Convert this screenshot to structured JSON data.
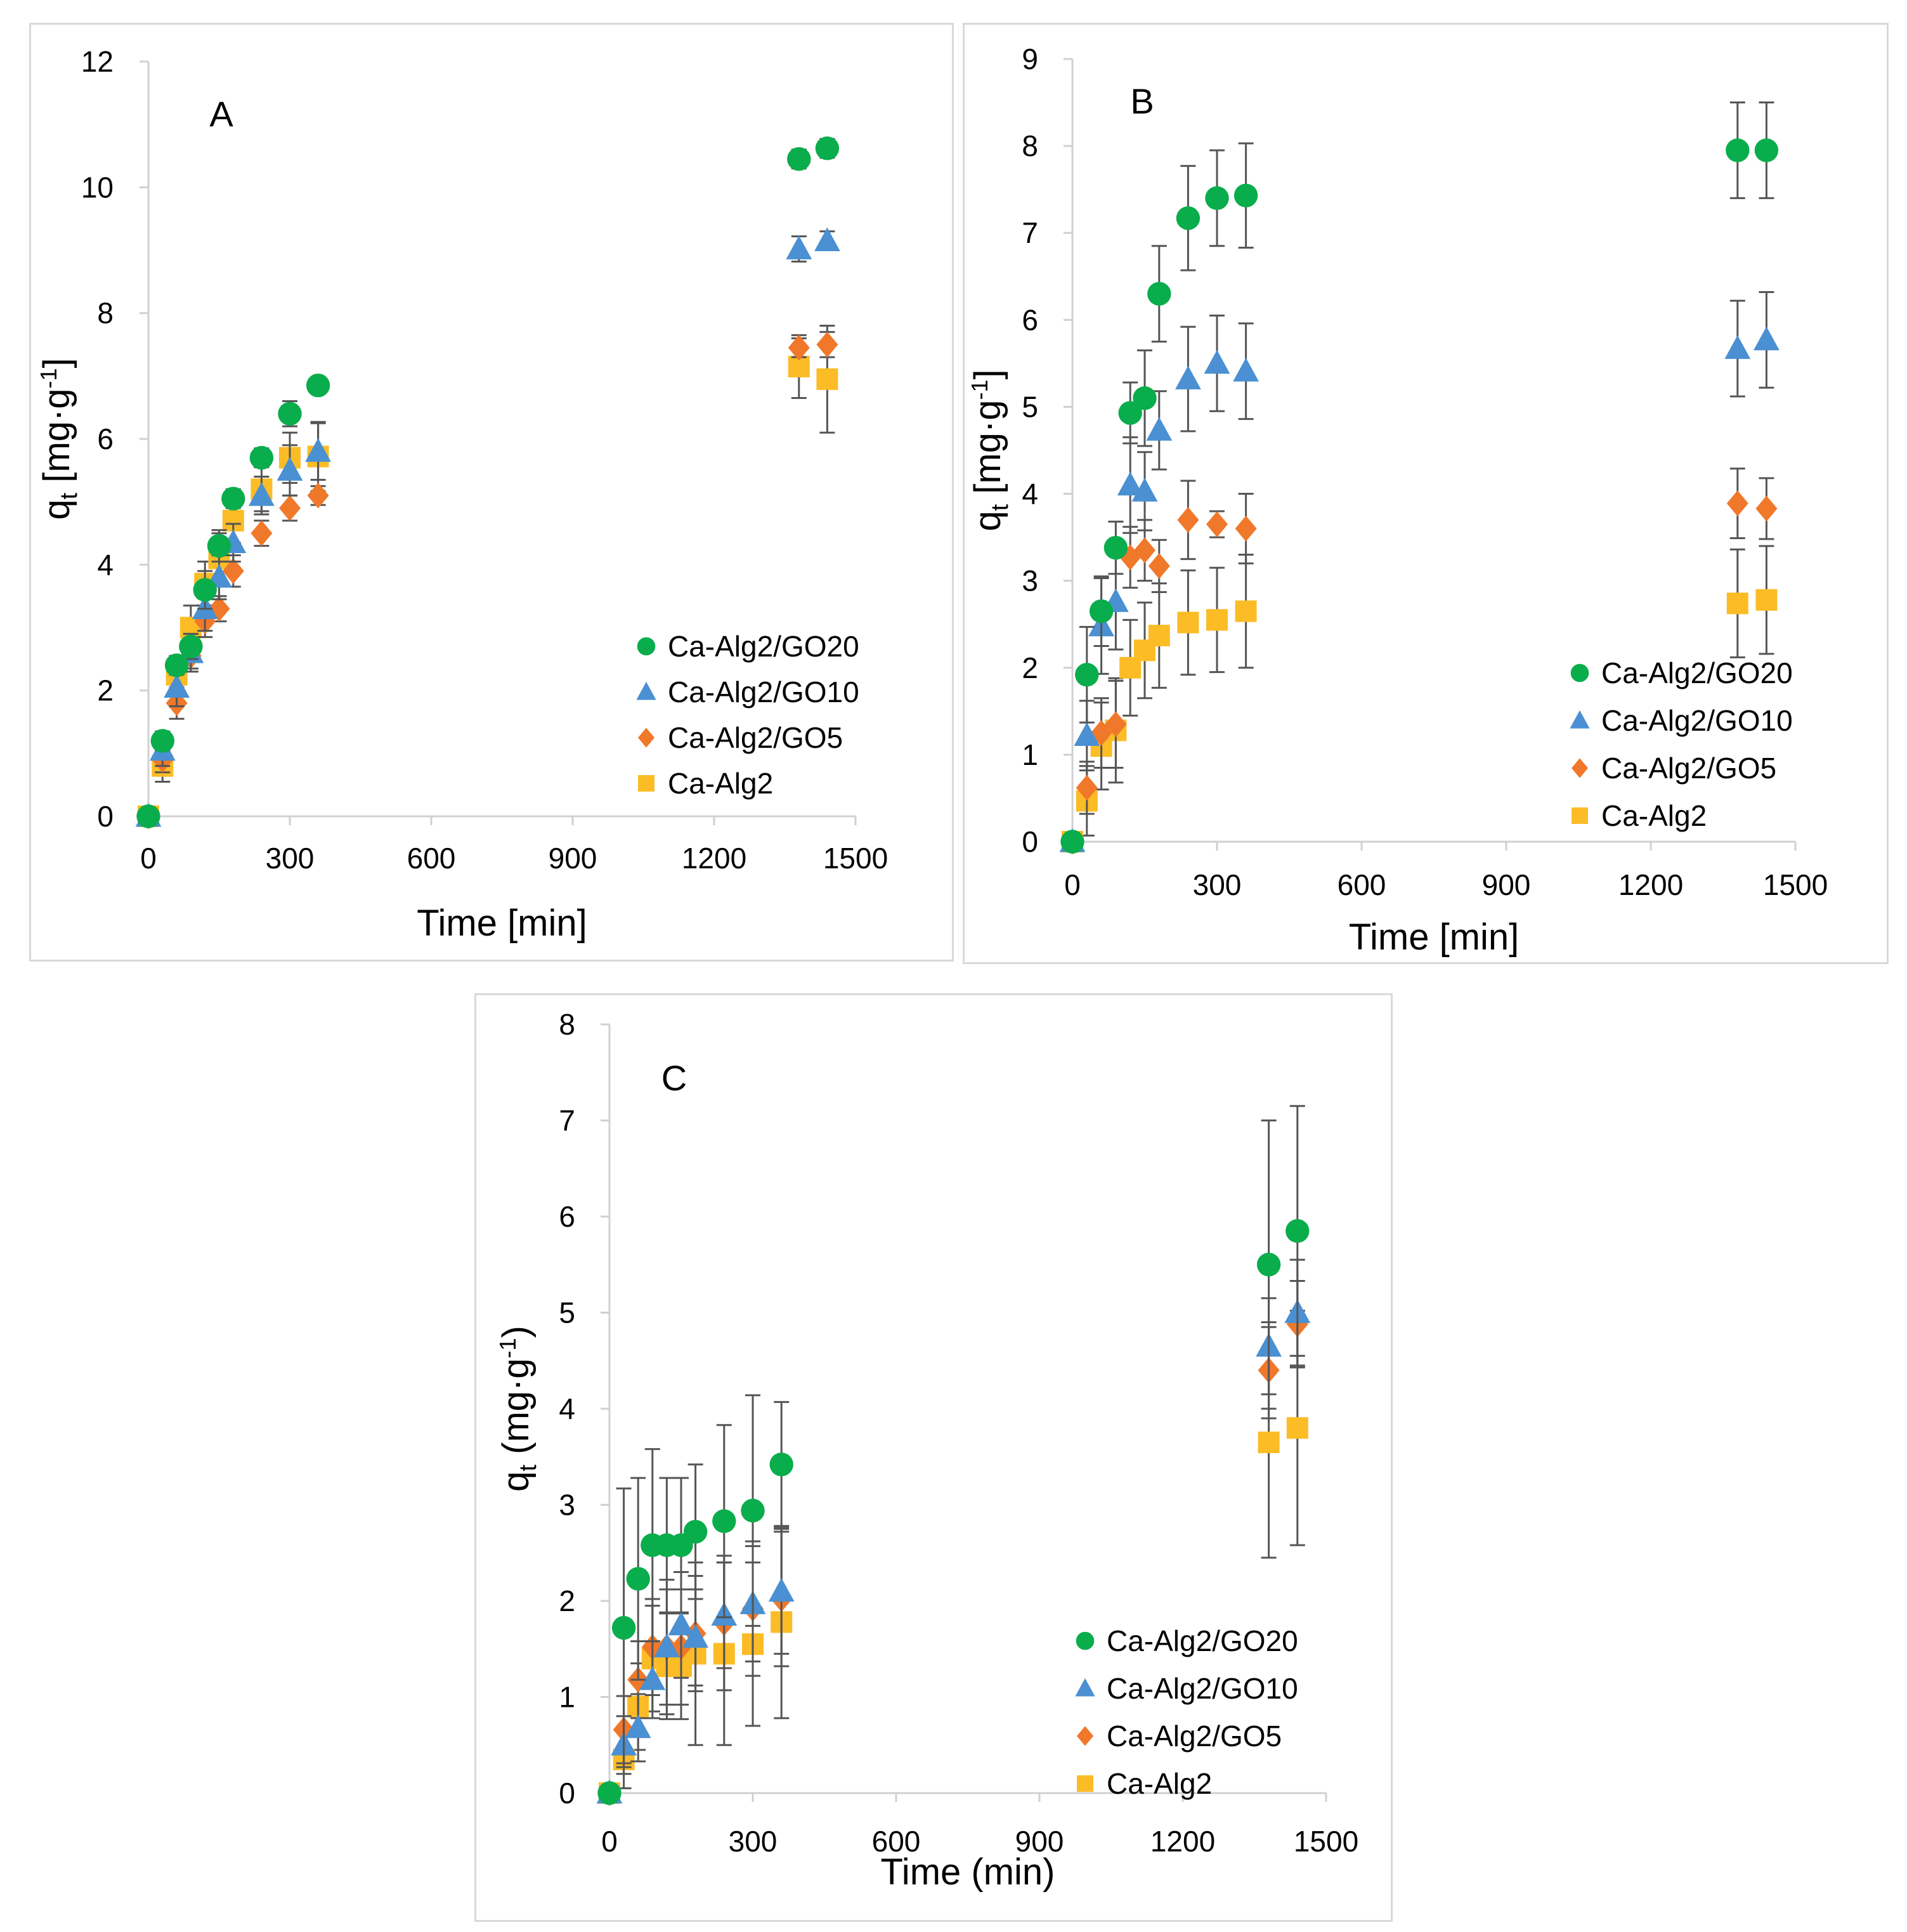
{
  "colors": {
    "Ca-Alg2/GO20": "#0aad4c",
    "Ca-Alg2/GO10": "#4a90d2",
    "Ca-Alg2/GO5": "#f0782a",
    "Ca-Alg2": "#fbbc26",
    "axis": "#d0d0d0",
    "error_bar": "#555555"
  },
  "chart_data": [
    {
      "panel": "A",
      "type": "scatter",
      "title": "A",
      "xlabel": "Time [min]",
      "ylabel_main": "q",
      "ylabel_sub": "t",
      "ylabel_rest": " [mg·g",
      "ylabel_sup": "-1",
      "ylabel_close": "]",
      "xlim": [
        0,
        1500
      ],
      "ylim": [
        0,
        12
      ],
      "xticks": [
        0,
        300,
        600,
        900,
        1200,
        1500
      ],
      "yticks": [
        0,
        2,
        4,
        6,
        8,
        10,
        12
      ],
      "legend_position": "right",
      "series": [
        {
          "name": "Ca-Alg2/GO20",
          "marker": "circle",
          "x": [
            0,
            30,
            60,
            90,
            120,
            150,
            180,
            240,
            300,
            360,
            1380,
            1440
          ],
          "y": [
            0,
            1.2,
            2.4,
            2.7,
            3.6,
            4.3,
            5.05,
            5.7,
            6.4,
            6.85,
            10.45,
            10.62
          ],
          "err": [
            0,
            0.15,
            0.15,
            0.2,
            0.3,
            0.25,
            0.15,
            0.15,
            0.2,
            0.1,
            0.15,
            0.15
          ]
        },
        {
          "name": "Ca-Alg2/GO10",
          "marker": "triangle",
          "x": [
            0,
            30,
            60,
            90,
            120,
            150,
            180,
            240,
            300,
            360,
            1380,
            1440
          ],
          "y": [
            0,
            1.05,
            2.05,
            2.6,
            3.3,
            3.8,
            4.35,
            5.1,
            5.5,
            5.8,
            9.02,
            9.15
          ],
          "err": [
            0,
            0.25,
            0.3,
            0.3,
            0.35,
            0.35,
            0.3,
            0.3,
            0.4,
            0.45,
            0.2,
            0.15
          ]
        },
        {
          "name": "Ca-Alg2/GO5",
          "marker": "diamond",
          "x": [
            0,
            30,
            60,
            90,
            120,
            150,
            180,
            240,
            300,
            360,
            1380,
            1440
          ],
          "y": [
            0,
            0.9,
            1.8,
            2.55,
            3.1,
            3.3,
            3.9,
            4.5,
            4.9,
            5.1,
            7.45,
            7.5
          ],
          "err": [
            0,
            0.2,
            0.25,
            0.2,
            0.25,
            0.2,
            0.25,
            0.2,
            0.2,
            0.15,
            0.15,
            0.2
          ]
        },
        {
          "name": "Ca-Alg2",
          "marker": "square",
          "x": [
            0,
            30,
            60,
            90,
            120,
            150,
            180,
            240,
            300,
            360,
            1380,
            1440
          ],
          "y": [
            0,
            0.8,
            2.25,
            3.0,
            3.7,
            4.1,
            4.7,
            5.2,
            5.7,
            5.72,
            7.15,
            6.95
          ],
          "err": [
            0,
            0.25,
            0.3,
            0.35,
            0.35,
            0.4,
            0.35,
            0.35,
            0.4,
            0.55,
            0.5,
            0.85
          ]
        }
      ]
    },
    {
      "panel": "B",
      "type": "scatter",
      "title": "B",
      "xlabel": "Time [min]",
      "ylabel_main": "q",
      "ylabel_sub": "t",
      "ylabel_rest": " [mg·g",
      "ylabel_sup": "-1",
      "ylabel_close": "]",
      "xlim": [
        0,
        1500
      ],
      "ylim": [
        0,
        9
      ],
      "xticks": [
        0,
        300,
        600,
        900,
        1200,
        1500
      ],
      "yticks": [
        0,
        1,
        2,
        3,
        4,
        5,
        6,
        7,
        8,
        9
      ],
      "legend_position": "right",
      "series": [
        {
          "name": "Ca-Alg2/GO20",
          "marker": "circle",
          "x": [
            0,
            30,
            60,
            90,
            120,
            150,
            180,
            240,
            300,
            360,
            1380,
            1440
          ],
          "y": [
            0,
            1.92,
            2.65,
            3.38,
            4.93,
            5.1,
            6.3,
            7.17,
            7.4,
            7.43,
            7.95,
            7.95
          ],
          "err": [
            0,
            0.55,
            0.4,
            0.3,
            0.35,
            0.55,
            0.55,
            0.6,
            0.55,
            0.6,
            0.55,
            0.55
          ]
        },
        {
          "name": "Ca-Alg2/GO10",
          "marker": "triangle",
          "x": [
            0,
            30,
            60,
            90,
            120,
            150,
            180,
            240,
            300,
            360,
            1380,
            1440
          ],
          "y": [
            0,
            1.22,
            2.48,
            2.76,
            4.1,
            4.03,
            4.73,
            5.32,
            5.5,
            5.41,
            5.67,
            5.77
          ],
          "err": [
            0,
            0.4,
            0.55,
            0.55,
            0.55,
            0.45,
            0.45,
            0.6,
            0.55,
            0.55,
            0.55,
            0.55
          ]
        },
        {
          "name": "Ca-Alg2/GO5",
          "marker": "diamond",
          "x": [
            0,
            30,
            60,
            90,
            120,
            150,
            180,
            240,
            300,
            360,
            1380,
            1440
          ],
          "y": [
            0,
            0.62,
            1.25,
            1.35,
            3.27,
            3.35,
            3.17,
            3.7,
            3.65,
            3.6,
            3.89,
            3.83
          ],
          "err": [
            0,
            0.3,
            0.4,
            0.5,
            0.35,
            0.35,
            0.3,
            0.45,
            0.15,
            0.4,
            0.4,
            0.35
          ]
        },
        {
          "name": "Ca-Alg2",
          "marker": "square",
          "x": [
            0,
            30,
            60,
            90,
            120,
            150,
            180,
            240,
            300,
            360,
            1380,
            1440
          ],
          "y": [
            0,
            0.47,
            1.1,
            1.28,
            2.0,
            2.2,
            2.37,
            2.52,
            2.55,
            2.65,
            2.74,
            2.78
          ],
          "err": [
            0,
            0.4,
            0.5,
            0.6,
            0.55,
            0.55,
            0.6,
            0.6,
            0.6,
            0.65,
            0.62,
            0.62
          ]
        }
      ]
    },
    {
      "panel": "C",
      "type": "scatter",
      "title": "C",
      "xlabel": "Time (min)",
      "ylabel_main": "q",
      "ylabel_sub": "t",
      "ylabel_rest": " (mg·g",
      "ylabel_sup": "-1",
      "ylabel_close": ")",
      "xlim": [
        0,
        1500
      ],
      "ylim": [
        0,
        8
      ],
      "xticks": [
        0,
        300,
        600,
        900,
        1200,
        1500
      ],
      "yticks": [
        0,
        1,
        2,
        3,
        4,
        5,
        6,
        7,
        8
      ],
      "legend_position": "right",
      "series": [
        {
          "name": "Ca-Alg2/GO20",
          "marker": "circle",
          "x": [
            0,
            30,
            60,
            90,
            120,
            150,
            180,
            240,
            300,
            360,
            1380,
            1440
          ],
          "y": [
            0,
            1.72,
            2.23,
            2.58,
            2.58,
            2.58,
            2.72,
            2.83,
            2.94,
            3.42,
            5.5,
            5.85
          ],
          "err": [
            0,
            1.45,
            1.05,
            1.0,
            0.7,
            0.7,
            0.7,
            1.0,
            1.2,
            0.65,
            1.5,
            1.3
          ]
        },
        {
          "name": "Ca-Alg2/GO10",
          "marker": "triangle",
          "x": [
            0,
            30,
            60,
            90,
            120,
            150,
            180,
            240,
            300,
            360,
            1380,
            1440
          ],
          "y": [
            0,
            0.5,
            0.68,
            1.18,
            1.52,
            1.75,
            1.62,
            1.85,
            1.97,
            2.1,
            4.65,
            5.0
          ],
          "err": [
            0,
            0.3,
            0.35,
            0.4,
            0.7,
            0.55,
            0.5,
            0.55,
            0.6,
            0.65,
            0.5,
            0.55
          ]
        },
        {
          "name": "Ca-Alg2/GO5",
          "marker": "diamond",
          "x": [
            0,
            30,
            60,
            90,
            120,
            150,
            180,
            240,
            300,
            360,
            1380,
            1440
          ],
          "y": [
            0,
            0.66,
            1.18,
            1.52,
            1.52,
            1.52,
            1.66,
            1.77,
            1.92,
            2.02,
            4.4,
            4.88
          ],
          "err": [
            0,
            0.35,
            0.4,
            0.5,
            0.6,
            0.6,
            0.6,
            0.7,
            0.7,
            0.7,
            0.5,
            0.45
          ]
        },
        {
          "name": "Ca-Alg2",
          "marker": "square",
          "x": [
            0,
            30,
            60,
            90,
            120,
            150,
            180,
            240,
            300,
            360,
            1380,
            1440
          ],
          "y": [
            0,
            0.35,
            0.9,
            1.4,
            1.32,
            1.32,
            1.45,
            1.45,
            1.55,
            1.78,
            3.65,
            3.8
          ],
          "err": [
            0,
            0.3,
            0.45,
            0.55,
            0.55,
            0.55,
            0.95,
            0.95,
            0.85,
            1.0,
            1.2,
            1.22
          ]
        }
      ]
    }
  ]
}
